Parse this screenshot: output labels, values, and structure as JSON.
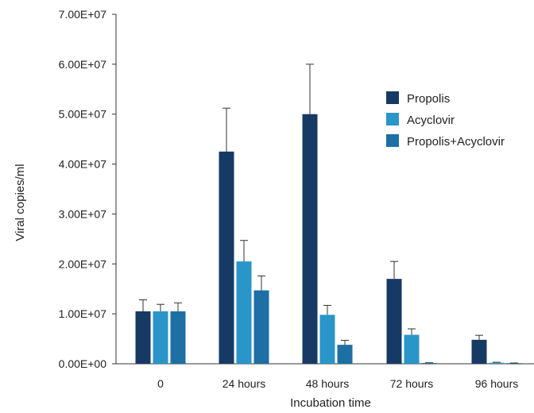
{
  "chart_data": {
    "type": "bar",
    "title": "",
    "xlabel": "Incubation time",
    "ylabel": "Viral copies/ml",
    "categories": [
      "0",
      "24 hours",
      "48 hours",
      "72 hours",
      "96 hours"
    ],
    "ylim": [
      0,
      70000000
    ],
    "yticks": [
      0,
      10000000,
      20000000,
      30000000,
      40000000,
      50000000,
      60000000,
      70000000
    ],
    "ytick_labels": [
      "0.00E+00",
      "1.00E+07",
      "2.00E+07",
      "3.00E+07",
      "4.00E+07",
      "5.00E+07",
      "6.00E+07",
      "7.00E+07"
    ],
    "grid": false,
    "legend_position": "right",
    "series": [
      {
        "name": "Propolis",
        "color": "#163a64",
        "values": [
          10500000,
          42500000,
          50000000,
          17000000,
          4800000
        ],
        "errors": [
          2300000,
          8700000,
          10000000,
          3500000,
          900000
        ]
      },
      {
        "name": "Acyclovir",
        "color": "#2a95c8",
        "values": [
          10500000,
          20500000,
          9800000,
          5800000,
          200000
        ],
        "errors": [
          1400000,
          4200000,
          1900000,
          1200000,
          100000
        ]
      },
      {
        "name": "Propolis+Acyclovir",
        "color": "#1e6fa4",
        "values": [
          10500000,
          14700000,
          3800000,
          150000,
          100000
        ],
        "errors": [
          1700000,
          2900000,
          900000,
          50000,
          50000
        ]
      }
    ]
  }
}
